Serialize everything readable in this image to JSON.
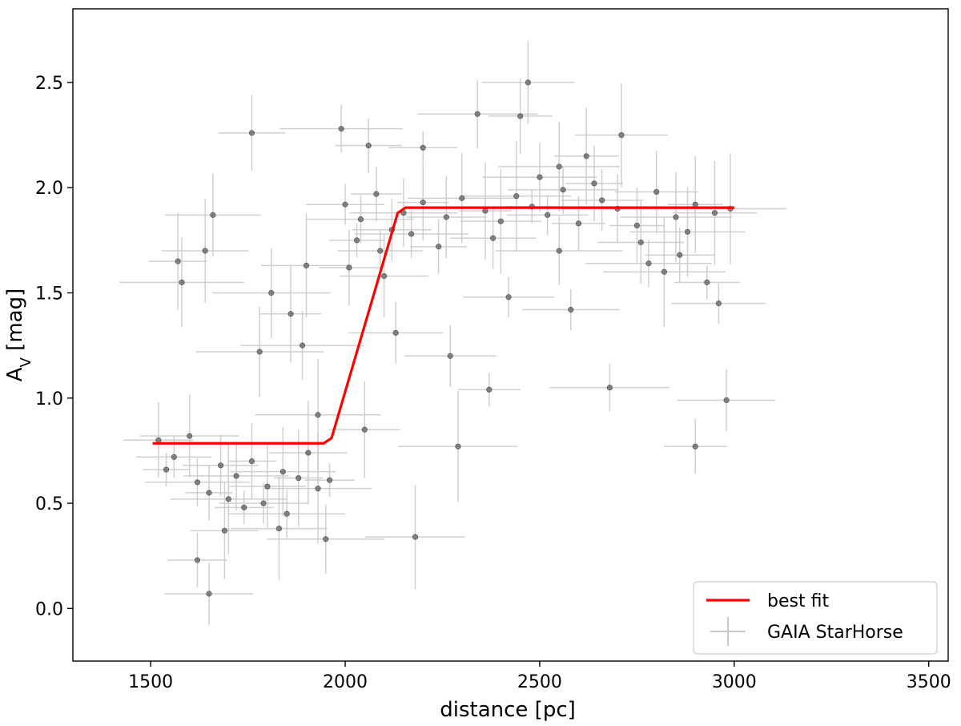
{
  "chart_data": {
    "type": "scatter",
    "title": "",
    "xlabel": "distance [pc]",
    "ylabel_main": "A",
    "ylabel_sub": "V",
    "ylabel_rest": " [mag]",
    "xlim": [
      1300,
      3550
    ],
    "ylim": [
      -0.25,
      2.85
    ],
    "xticks": [
      1500,
      2000,
      2500,
      3000,
      3500
    ],
    "xtick_labels": [
      "1500",
      "2000",
      "2500",
      "3000",
      "3500"
    ],
    "yticks": [
      0.0,
      0.5,
      1.0,
      1.5,
      2.0,
      2.5
    ],
    "ytick_labels": [
      "0.0",
      "0.5",
      "1.0",
      "1.5",
      "2.0",
      "2.5"
    ],
    "grid": false,
    "legend_position": "lower-right",
    "legend": [
      "best fit",
      "GAIA StarHorse"
    ],
    "colors": {
      "fit": "#ff0000",
      "points": "#333333",
      "errorbars": "#c8c8c8",
      "frame": "#000000"
    },
    "series": [
      {
        "name": "best fit",
        "kind": "line",
        "x": [
          1505,
          1945,
          1965,
          2135,
          2155,
          3000
        ],
        "y": [
          0.785,
          0.785,
          0.81,
          1.88,
          1.905,
          1.905
        ]
      },
      {
        "name": "GAIA StarHorse",
        "kind": "scatter-with-errorbars",
        "x": [
          1540,
          1560,
          1620,
          1650,
          1680,
          1720,
          1760,
          1800,
          1840,
          1880,
          1905,
          1930,
          1960,
          2000,
          2040,
          2080,
          2120,
          2150,
          2200,
          2260,
          2300,
          2360,
          2400,
          2440,
          2480,
          2520,
          2560,
          2600,
          2660,
          2700,
          2750,
          2800,
          2850,
          2900,
          2950,
          2990,
          2030,
          2090,
          2170,
          2240,
          2380,
          2500,
          2640,
          2760,
          2880,
          1570,
          1640,
          1700,
          1740,
          1790,
          1850,
          1620,
          1650,
          1950,
          2010,
          2100,
          1810,
          1860,
          1900,
          2290,
          2370,
          2420,
          2680,
          2900,
          2270,
          2340,
          2450,
          2470,
          2550,
          2620,
          2710,
          2820,
          2930,
          2960,
          1990,
          2060,
          2130,
          1890,
          1760,
          1660,
          1580,
          1690,
          1830,
          1930,
          2200,
          2580,
          2780,
          2860,
          2980,
          2550,
          1520,
          1600,
          1780,
          2050,
          2180
        ],
        "y": [
          0.66,
          0.72,
          0.6,
          0.55,
          0.68,
          0.63,
          0.7,
          0.58,
          0.65,
          0.62,
          0.74,
          0.57,
          0.61,
          1.92,
          1.85,
          1.97,
          1.8,
          1.88,
          1.93,
          1.86,
          1.95,
          1.89,
          1.84,
          1.96,
          1.91,
          1.87,
          1.99,
          1.83,
          1.94,
          1.9,
          1.82,
          1.98,
          1.86,
          1.92,
          1.88,
          1.9,
          1.75,
          1.7,
          1.78,
          1.72,
          1.76,
          2.05,
          2.02,
          1.74,
          1.79,
          1.65,
          1.7,
          0.52,
          0.48,
          0.5,
          0.45,
          0.23,
          0.07,
          0.33,
          1.62,
          1.58,
          1.5,
          1.4,
          1.63,
          0.77,
          1.04,
          1.48,
          1.05,
          0.77,
          1.2,
          2.35,
          2.34,
          2.5,
          2.1,
          2.15,
          2.25,
          1.6,
          1.55,
          1.45,
          2.28,
          2.2,
          1.31,
          1.25,
          2.26,
          1.87,
          1.55,
          0.37,
          0.38,
          0.92,
          2.19,
          1.42,
          1.64,
          1.68,
          0.99,
          1.7,
          0.8,
          0.82,
          1.22,
          0.85,
          0.34
        ]
      }
    ]
  }
}
